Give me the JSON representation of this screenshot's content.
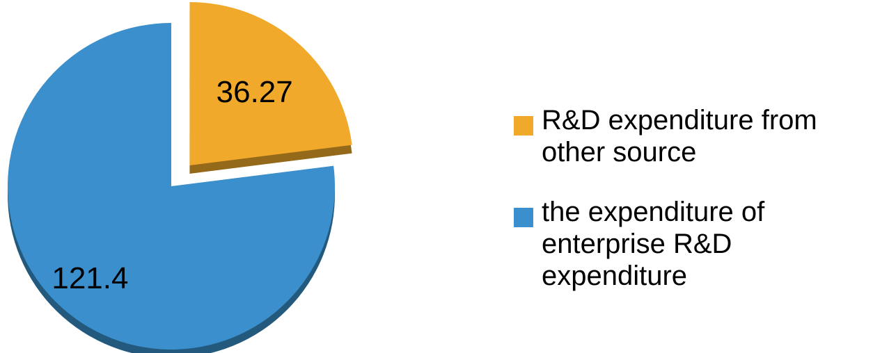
{
  "chart_data": {
    "type": "pie",
    "slices": [
      {
        "label": "R&D expenditure from other source",
        "value": 36.27,
        "value_label": "36.27",
        "color": "#F0A92A",
        "exploded": true
      },
      {
        "label": "the expenditure of enterprise R&D expenditure",
        "value": 121.4,
        "value_label": "121.4",
        "color": "#3A8FCC",
        "exploded": false
      }
    ],
    "legend_position": "right",
    "style": "3d"
  },
  "legend": {
    "items": [
      {
        "label": "R&D expenditure from other source",
        "color": "#F0A92A"
      },
      {
        "label": "the expenditure of enterprise R&D expenditure",
        "color": "#3A8FCC"
      }
    ]
  }
}
